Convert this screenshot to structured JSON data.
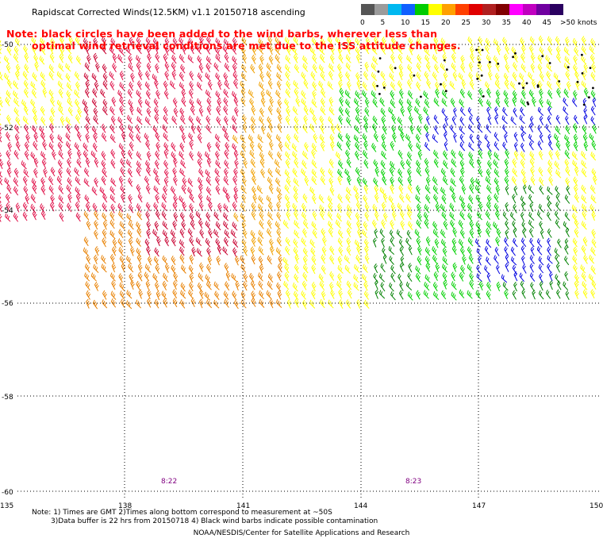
{
  "title": "Rapidscat Corrected Winds(12.5KM) v1.1 20150718 ascending",
  "note": {
    "line1": "Note: black circles have been added to the wind barbs, wherever less than",
    "line2": "optimal wind retrieval conditions are met due to the ISS attitude changes."
  },
  "legend": {
    "unit": ">50 knots",
    "labels": [
      "0",
      "5",
      "10",
      "15",
      "20",
      "25",
      "30",
      "35",
      "40",
      "45"
    ],
    "colors": [
      "#555555",
      "#9b9b9b",
      "#00b8f0",
      "#1060ff",
      "#00cc00",
      "#ffff00",
      "#ffa000",
      "#ff4000",
      "#e00000",
      "#b02020",
      "#800000",
      "#ff00ff",
      "#c000c0",
      "#7000a0",
      "#2a0060"
    ]
  },
  "axes": {
    "lat_labels": [
      "-50",
      "-52",
      "-54",
      "-56",
      "-58",
      "-60"
    ],
    "lon_labels": [
      "135",
      "138",
      "141",
      "144",
      "147",
      "150"
    ]
  },
  "time_labels": [
    "8:22",
    "8:23"
  ],
  "wind_colors": {
    "dark_red": "#c80030",
    "red": "#e01048",
    "orange": "#e88000",
    "light_orange": "#f0a000",
    "yellow": "#ffff00",
    "green": "#00d000",
    "dark_green": "#008000",
    "blue": "#0000e0",
    "black": "#000000"
  },
  "footnotes": {
    "line1": "Note: 1) Times are GMT 2)Times along bottom correspond to measurement at ~50S",
    "line2": "3)Data buffer is 22 hrs from 20150718 4) Black wind barbs indicate possible contamination"
  },
  "credit": "NOAA/NESDIS/Center for Satellite Applications and Research"
}
